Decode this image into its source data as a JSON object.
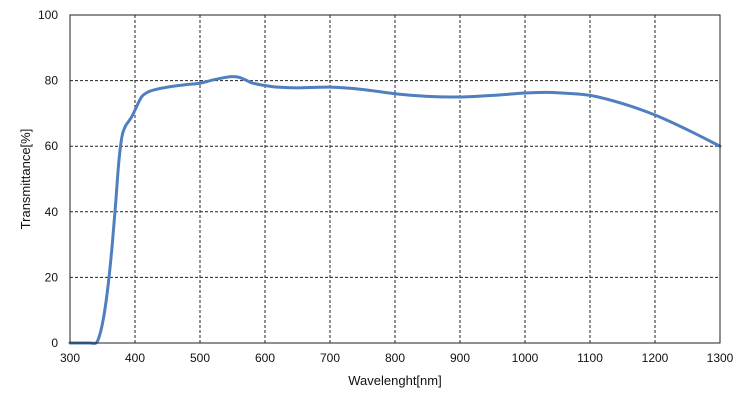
{
  "chart_data": {
    "type": "line",
    "title": "",
    "xlabel": "Wavelenght[nm]",
    "ylabel": "Transmittance[%]",
    "xlim": [
      300,
      1300
    ],
    "ylim": [
      0,
      100
    ],
    "x_ticks": [
      300,
      400,
      500,
      600,
      700,
      800,
      900,
      1000,
      1100,
      1200,
      1300
    ],
    "y_ticks": [
      0,
      20,
      40,
      60,
      80,
      100
    ],
    "grid": true,
    "grid_style": "dashed",
    "legend": "none",
    "series": [
      {
        "color": "#4f7fbf",
        "x": [
          300,
          330,
          340,
          345,
          350,
          355,
          360,
          365,
          370,
          375,
          380,
          385,
          390,
          395,
          400,
          410,
          420,
          430,
          450,
          480,
          500,
          520,
          540,
          550,
          560,
          570,
          580,
          600,
          620,
          650,
          700,
          750,
          800,
          850,
          900,
          950,
          1000,
          1030,
          1050,
          1100,
          1150,
          1200,
          1250,
          1300
        ],
        "y": [
          0,
          0,
          0,
          2,
          6,
          12,
          20,
          30,
          42,
          55,
          63,
          66,
          67.5,
          69,
          71,
          75,
          76.5,
          77.2,
          78,
          78.8,
          79.2,
          80.2,
          81,
          81.2,
          81,
          80.2,
          79.3,
          78.5,
          78,
          77.8,
          78,
          77.3,
          76,
          75.2,
          75,
          75.5,
          76.2,
          76.4,
          76.3,
          75.5,
          73,
          69.5,
          65,
          60
        ]
      }
    ]
  }
}
